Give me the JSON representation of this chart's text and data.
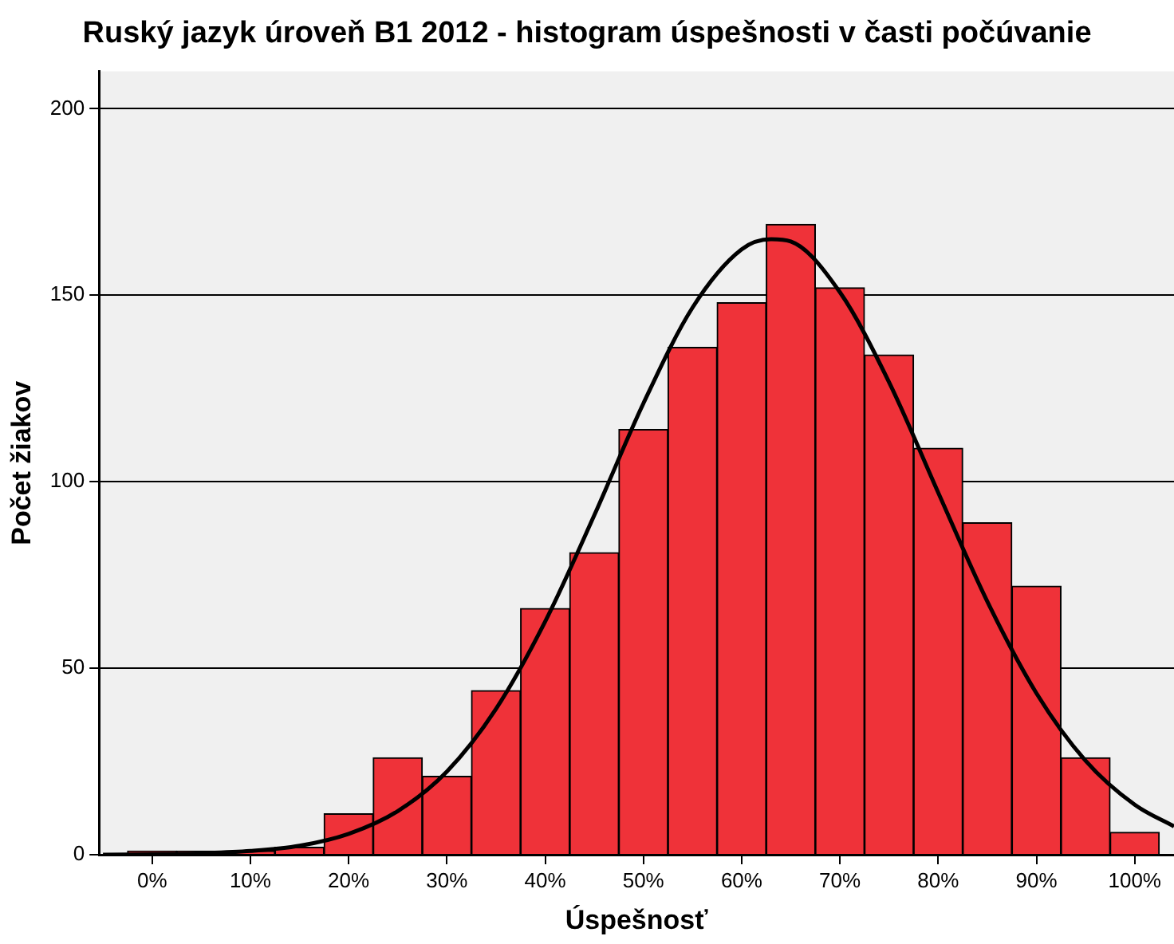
{
  "chart_data": {
    "type": "histogram",
    "title": "Ruský jazyk úroveň B1 2012 - histogram úspešnosti v časti počúvanie",
    "xlabel": "Úspešnosť",
    "ylabel": "Počet žiakov",
    "bins": [
      -2.5,
      2.5,
      7.5,
      12.5,
      17.5,
      22.5,
      27.5,
      32.5,
      37.5,
      42.5,
      47.5,
      52.5,
      57.5,
      62.5,
      67.5,
      72.5,
      77.5,
      82.5,
      87.5,
      92.5,
      97.5,
      102.5
    ],
    "values": [
      1,
      1,
      1,
      2,
      11,
      26,
      21,
      44,
      66,
      81,
      114,
      136,
      148,
      169,
      152,
      134,
      109,
      89,
      72,
      26,
      6
    ],
    "color": "#ef3239",
    "series": [
      {
        "type": "line",
        "color": "#000000",
        "x": [
          -5,
          0,
          5,
          10,
          15,
          20,
          25,
          30,
          35,
          40,
          45,
          50,
          55,
          60,
          63,
          65,
          70,
          75,
          80,
          85,
          90,
          95,
          100,
          104
        ],
        "values": [
          0,
          0.1,
          0.4,
          1,
          2.4,
          5.6,
          11.7,
          22.3,
          39.1,
          62.5,
          91,
          121,
          146.7,
          162.3,
          165,
          164.4,
          150.8,
          126.7,
          97.1,
          67.9,
          43.3,
          25.2,
          13.4,
          7.6
        ]
      }
    ],
    "xlim": [
      -5.4,
      104
    ],
    "xticks": [
      {
        "value": 0,
        "label": "0%"
      },
      {
        "value": 10,
        "label": "10%"
      },
      {
        "value": 20,
        "label": "20%"
      },
      {
        "value": 30,
        "label": "30%"
      },
      {
        "value": 40,
        "label": "40%"
      },
      {
        "value": 50,
        "label": "50%"
      },
      {
        "value": 60,
        "label": "60%"
      },
      {
        "value": 70,
        "label": "70%"
      },
      {
        "value": 80,
        "label": "80%"
      },
      {
        "value": 90,
        "label": "90%"
      },
      {
        "value": 100,
        "label": "100%"
      }
    ],
    "ylim": [
      0,
      210
    ],
    "yticks": [
      0,
      50,
      100,
      150,
      200
    ],
    "grid": "y",
    "legend": false,
    "marker": "none"
  }
}
